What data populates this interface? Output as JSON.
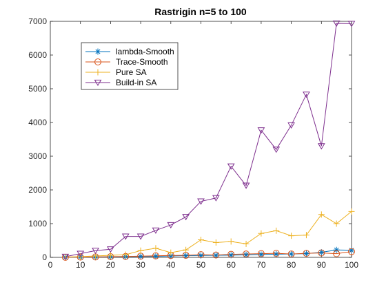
{
  "chart_data": {
    "type": "line",
    "title": "Rastrigin n=5 to 100",
    "xlabel": "",
    "ylabel": "",
    "xlim": [
      0,
      100
    ],
    "ylim": [
      0,
      7000
    ],
    "xticks": [
      0,
      10,
      20,
      30,
      40,
      50,
      60,
      70,
      80,
      90,
      100
    ],
    "yticks": [
      0,
      1000,
      2000,
      3000,
      4000,
      5000,
      6000,
      7000
    ],
    "grid": false,
    "legend_position": "top-left",
    "x": [
      5,
      10,
      15,
      20,
      25,
      30,
      35,
      40,
      45,
      50,
      55,
      60,
      65,
      70,
      75,
      80,
      85,
      90,
      95,
      100
    ],
    "series": [
      {
        "name": "lambda-Smooth",
        "color": "#0072BD",
        "marker": "asterisk",
        "values": [
          2,
          5,
          10,
          15,
          20,
          25,
          30,
          40,
          50,
          55,
          60,
          65,
          75,
          85,
          95,
          100,
          110,
          150,
          220,
          210
        ]
      },
      {
        "name": "Trace-Smooth",
        "color": "#D95319",
        "marker": "circle",
        "values": [
          3,
          8,
          12,
          20,
          25,
          35,
          45,
          55,
          60,
          80,
          70,
          90,
          100,
          110,
          120,
          100,
          120,
          130,
          110,
          170
        ]
      },
      {
        "name": "Pure SA",
        "color": "#EDB120",
        "marker": "plus",
        "values": [
          10,
          20,
          40,
          60,
          80,
          200,
          270,
          140,
          220,
          520,
          440,
          470,
          400,
          710,
          790,
          640,
          660,
          1270,
          1000,
          1360
        ]
      },
      {
        "name": "Build-in SA",
        "color": "#7E2F8E",
        "marker": "triangle-down",
        "values": [
          20,
          110,
          200,
          240,
          620,
          620,
          800,
          960,
          1200,
          1660,
          1760,
          2700,
          2130,
          3770,
          3200,
          3920,
          4830,
          3300,
          6940,
          6930
        ]
      }
    ]
  }
}
